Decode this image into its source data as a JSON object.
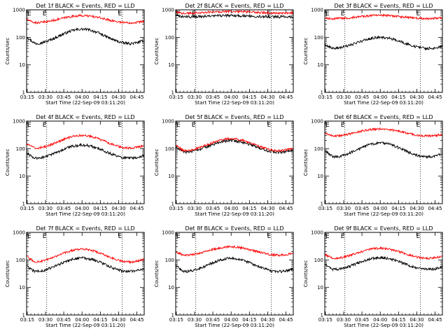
{
  "figure": {
    "background": "#ffffff",
    "axis_color": "#000000",
    "events_color": "#000000",
    "lld_color": "#ff0000"
  },
  "chart_data": [
    {
      "type": "line",
      "title": "Det 1f BLACK = Events, RED = LLD",
      "xlabel": "Start Time (22-Sep-09 03:11:20)",
      "ylabel": "Counts/sec",
      "yscale": "log",
      "ylim": [
        1,
        1000
      ],
      "xlim": [
        3.5,
        100
      ],
      "x_ticks": [
        {
          "t": 4,
          "label": "03:15"
        },
        {
          "t": 19,
          "label": "03:30"
        },
        {
          "t": 34,
          "label": "03:45"
        },
        {
          "t": 49,
          "label": "04:00"
        },
        {
          "t": 64,
          "label": "04:15"
        },
        {
          "t": 79,
          "label": "04:30"
        },
        {
          "t": 94,
          "label": "04:45"
        }
      ],
      "y_ticks": [
        {
          "v": 1,
          "label": "1"
        },
        {
          "v": 10,
          "label": "10"
        },
        {
          "v": 100,
          "label": "100"
        },
        {
          "v": 1000,
          "label": "1000"
        }
      ],
      "vlines": [
        20,
        82
      ],
      "flags": [
        {
          "t": 20,
          "label": "E"
        },
        {
          "t": 82,
          "label": "E"
        }
      ],
      "series": [
        {
          "name": "Events",
          "color": "#000000",
          "base": 60,
          "amp": 3.3,
          "start": 110
        },
        {
          "name": "LLD",
          "color": "#ff0000",
          "base": 340,
          "amp": 1.8,
          "start": 450
        }
      ]
    },
    {
      "type": "line",
      "title": "Det 2f BLACK = Events, RED = LLD",
      "xlabel": "Start Time (22-Sep-09 03:11:20)",
      "ylabel": "Counts/sec",
      "yscale": "log",
      "ylim": [
        1,
        1000
      ],
      "xlim": [
        3.5,
        100
      ],
      "x_ticks": [
        {
          "t": 4,
          "label": "03:15"
        },
        {
          "t": 19,
          "label": "03:30"
        },
        {
          "t": 34,
          "label": "03:45"
        },
        {
          "t": 49,
          "label": "04:00"
        },
        {
          "t": 64,
          "label": "04:15"
        },
        {
          "t": 79,
          "label": "04:30"
        },
        {
          "t": 94,
          "label": "04:45"
        }
      ],
      "y_ticks": [
        {
          "v": 1,
          "label": "1"
        },
        {
          "v": 10,
          "label": "10"
        },
        {
          "v": 100,
          "label": "100"
        },
        {
          "v": 1000,
          "label": "1000"
        }
      ],
      "vlines": [
        20,
        82
      ],
      "flags": [
        {
          "t": 20,
          "label": "E"
        },
        {
          "t": 82,
          "label": "E"
        }
      ],
      "series": [
        {
          "name": "Events",
          "color": "#000000",
          "base": 560,
          "amp": 1.1,
          "start": 600
        },
        {
          "name": "LLD",
          "color": "#ff0000",
          "base": 760,
          "amp": 1.15,
          "start": 800
        }
      ]
    },
    {
      "type": "line",
      "title": "Det 3f BLACK = Events, RED = LLD",
      "xlabel": "Start Time (22-Sep-09 03:11:20)",
      "ylabel": "Counts/sec",
      "yscale": "log",
      "ylim": [
        1,
        1000
      ],
      "xlim": [
        3.5,
        100
      ],
      "x_ticks": [
        {
          "t": 4,
          "label": "03:15"
        },
        {
          "t": 19,
          "label": "03:30"
        },
        {
          "t": 34,
          "label": "03:45"
        },
        {
          "t": 49,
          "label": "04:00"
        },
        {
          "t": 64,
          "label": "04:15"
        },
        {
          "t": 79,
          "label": "04:30"
        },
        {
          "t": 94,
          "label": "04:45"
        }
      ],
      "y_ticks": [
        {
          "v": 1,
          "label": "1"
        },
        {
          "v": 10,
          "label": "10"
        },
        {
          "v": 100,
          "label": "100"
        },
        {
          "v": 1000,
          "label": "1000"
        }
      ],
      "vlines": [
        20,
        82
      ],
      "flags": [
        {
          "t": 20,
          "label": "E"
        },
        {
          "t": 82,
          "label": "E"
        }
      ],
      "series": [
        {
          "name": "Events",
          "color": "#000000",
          "base": 40,
          "amp": 2.5,
          "start": 55
        },
        {
          "name": "LLD",
          "color": "#ff0000",
          "base": 480,
          "amp": 1.3,
          "start": 500
        }
      ]
    },
    {
      "type": "line",
      "title": "Det 4f BLACK = Events, RED = LLD",
      "xlabel": "Start Time (22-Sep-09 03:11:20)",
      "ylabel": "Counts/sec",
      "yscale": "log",
      "ylim": [
        1,
        1000
      ],
      "xlim": [
        3.5,
        100
      ],
      "x_ticks": [
        {
          "t": 4,
          "label": "03:15"
        },
        {
          "t": 19,
          "label": "03:30"
        },
        {
          "t": 34,
          "label": "03:45"
        },
        {
          "t": 49,
          "label": "04:00"
        },
        {
          "t": 64,
          "label": "04:15"
        },
        {
          "t": 79,
          "label": "04:30"
        },
        {
          "t": 94,
          "label": "04:45"
        }
      ],
      "y_ticks": [
        {
          "v": 1,
          "label": "1"
        },
        {
          "v": 10,
          "label": "10"
        },
        {
          "v": 100,
          "label": "100"
        },
        {
          "v": 1000,
          "label": "1000"
        }
      ],
      "vlines": [
        20,
        82
      ],
      "flags": [
        {
          "t": 20,
          "label": "E"
        },
        {
          "t": 82,
          "label": "E"
        }
      ],
      "series": [
        {
          "name": "Events",
          "color": "#000000",
          "base": 45,
          "amp": 3.0,
          "start": 70
        },
        {
          "name": "LLD",
          "color": "#ff0000",
          "base": 105,
          "amp": 2.9,
          "start": 150
        }
      ]
    },
    {
      "type": "line",
      "title": "Det 5f BLACK = Events, RED = LLD",
      "xlabel": "Start Time (22-Sep-09 03:11:20)",
      "ylabel": "Counts/sec",
      "yscale": "log",
      "ylim": [
        1,
        1000
      ],
      "xlim": [
        3.5,
        100
      ],
      "x_ticks": [
        {
          "t": 4,
          "label": "03:15"
        },
        {
          "t": 19,
          "label": "03:30"
        },
        {
          "t": 34,
          "label": "03:45"
        },
        {
          "t": 49,
          "label": "04:00"
        },
        {
          "t": 64,
          "label": "04:15"
        },
        {
          "t": 79,
          "label": "04:30"
        },
        {
          "t": 94,
          "label": "04:45"
        }
      ],
      "y_ticks": [
        {
          "v": 1,
          "label": "1"
        },
        {
          "v": 10,
          "label": "10"
        },
        {
          "v": 100,
          "label": "100"
        },
        {
          "v": 1000,
          "label": "1000"
        }
      ],
      "vlines": [
        20,
        82
      ],
      "flags": [
        {
          "t": 20,
          "label": "E"
        },
        {
          "t": 82,
          "label": "E"
        }
      ],
      "series": [
        {
          "name": "Events",
          "color": "#000000",
          "base": 75,
          "amp": 2.6,
          "start": 115
        },
        {
          "name": "LLD",
          "color": "#ff0000",
          "base": 85,
          "amp": 2.7,
          "start": 140
        }
      ]
    },
    {
      "type": "line",
      "title": "Det 6f BLACK = Events, RED = LLD",
      "xlabel": "Start Time (22-Sep-09 03:11:20)",
      "ylabel": "Counts/sec",
      "yscale": "log",
      "ylim": [
        1,
        1000
      ],
      "xlim": [
        3.5,
        100
      ],
      "x_ticks": [
        {
          "t": 4,
          "label": "03:15"
        },
        {
          "t": 19,
          "label": "03:30"
        },
        {
          "t": 34,
          "label": "03:45"
        },
        {
          "t": 49,
          "label": "04:00"
        },
        {
          "t": 64,
          "label": "04:15"
        },
        {
          "t": 79,
          "label": "04:30"
        },
        {
          "t": 94,
          "label": "04:45"
        }
      ],
      "y_ticks": [
        {
          "v": 1,
          "label": "1"
        },
        {
          "v": 10,
          "label": "10"
        },
        {
          "v": 100,
          "label": "100"
        },
        {
          "v": 1000,
          "label": "1000"
        }
      ],
      "vlines": [
        20,
        82
      ],
      "flags": [
        {
          "t": 20,
          "label": "E"
        },
        {
          "t": 82,
          "label": "E"
        }
      ],
      "series": [
        {
          "name": "Events",
          "color": "#000000",
          "base": 50,
          "amp": 3.2,
          "start": 90
        },
        {
          "name": "LLD",
          "color": "#ff0000",
          "base": 290,
          "amp": 1.8,
          "start": 360
        }
      ]
    },
    {
      "type": "line",
      "title": "Det 7f BLACK = Events, RED = LLD",
      "xlabel": "Start Time (22-Sep-09 03:11:20)",
      "ylabel": "Counts/sec",
      "yscale": "log",
      "ylim": [
        1,
        1000
      ],
      "xlim": [
        3.5,
        100
      ],
      "x_ticks": [
        {
          "t": 4,
          "label": "03:15"
        },
        {
          "t": 19,
          "label": "03:30"
        },
        {
          "t": 34,
          "label": "03:45"
        },
        {
          "t": 49,
          "label": "04:00"
        },
        {
          "t": 64,
          "label": "04:15"
        },
        {
          "t": 79,
          "label": "04:30"
        },
        {
          "t": 94,
          "label": "04:45"
        }
      ],
      "y_ticks": [
        {
          "v": 1,
          "label": "1"
        },
        {
          "v": 10,
          "label": "10"
        },
        {
          "v": 100,
          "label": "100"
        },
        {
          "v": 1000,
          "label": "1000"
        }
      ],
      "vlines": [
        20,
        82
      ],
      "flags": [
        {
          "t": 20,
          "label": "E"
        },
        {
          "t": 82,
          "label": "E"
        }
      ],
      "series": [
        {
          "name": "Events",
          "color": "#000000",
          "base": 38,
          "amp": 3.1,
          "start": 60
        },
        {
          "name": "LLD",
          "color": "#ff0000",
          "base": 85,
          "amp": 2.9,
          "start": 140
        }
      ]
    },
    {
      "type": "line",
      "title": "Det 8f BLACK = Events, RED = LLD",
      "xlabel": "Start Time (22-Sep-09 03:11:20)",
      "ylabel": "Counts/sec",
      "yscale": "log",
      "ylim": [
        1,
        1000
      ],
      "xlim": [
        3.5,
        100
      ],
      "x_ticks": [
        {
          "t": 4,
          "label": "03:15"
        },
        {
          "t": 19,
          "label": "03:30"
        },
        {
          "t": 34,
          "label": "03:45"
        },
        {
          "t": 49,
          "label": "04:00"
        },
        {
          "t": 64,
          "label": "04:15"
        },
        {
          "t": 79,
          "label": "04:30"
        },
        {
          "t": 94,
          "label": "04:45"
        }
      ],
      "y_ticks": [
        {
          "v": 1,
          "label": "1"
        },
        {
          "v": 10,
          "label": "10"
        },
        {
          "v": 100,
          "label": "100"
        },
        {
          "v": 1000,
          "label": "1000"
        }
      ],
      "vlines": [
        20,
        82
      ],
      "flags": [
        {
          "t": 20,
          "label": "E"
        },
        {
          "t": 82,
          "label": "E"
        }
      ],
      "series": [
        {
          "name": "Events",
          "color": "#000000",
          "base": 38,
          "amp": 3.0,
          "start": 65
        },
        {
          "name": "LLD",
          "color": "#ff0000",
          "base": 150,
          "amp": 2.0,
          "start": 200
        }
      ]
    },
    {
      "type": "line",
      "title": "Det 9f BLACK = Events, RED = LLD",
      "xlabel": "Start Time (22-Sep-09 03:11:20)",
      "ylabel": "Counts/sec",
      "yscale": "log",
      "ylim": [
        1,
        1000
      ],
      "xlim": [
        3.5,
        100
      ],
      "x_ticks": [
        {
          "t": 4,
          "label": "03:15"
        },
        {
          "t": 19,
          "label": "03:30"
        },
        {
          "t": 34,
          "label": "03:45"
        },
        {
          "t": 49,
          "label": "04:00"
        },
        {
          "t": 64,
          "label": "04:15"
        },
        {
          "t": 79,
          "label": "04:30"
        },
        {
          "t": 94,
          "label": "04:45"
        }
      ],
      "y_ticks": [
        {
          "v": 1,
          "label": "1"
        },
        {
          "v": 10,
          "label": "10"
        },
        {
          "v": 100,
          "label": "100"
        },
        {
          "v": 1000,
          "label": "1000"
        }
      ],
      "vlines": [
        20,
        82
      ],
      "flags": [
        {
          "t": 20,
          "label": "E"
        },
        {
          "t": 82,
          "label": "E"
        }
      ],
      "series": [
        {
          "name": "Events",
          "color": "#000000",
          "base": 45,
          "amp": 2.7,
          "start": 70
        },
        {
          "name": "LLD",
          "color": "#ff0000",
          "base": 115,
          "amp": 2.3,
          "start": 160
        }
      ]
    }
  ]
}
